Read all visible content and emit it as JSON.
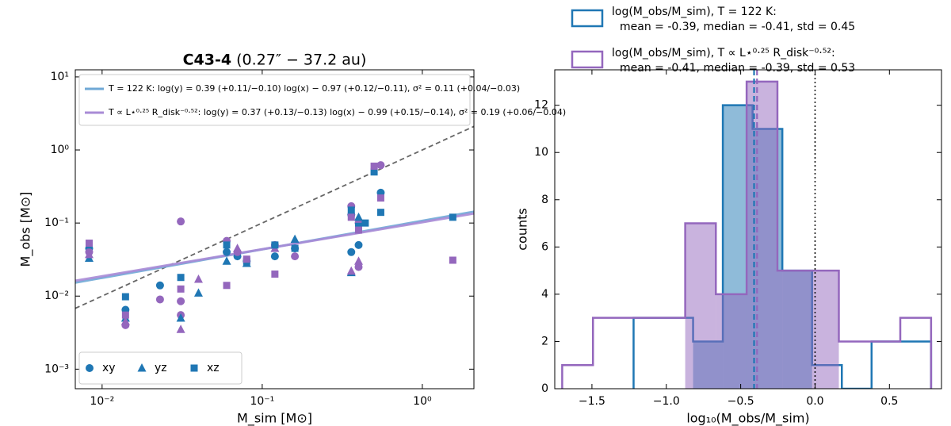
{
  "chart_data": [
    {
      "type": "scatter",
      "title": "C43-4",
      "subtitle": "(0.27″ − 37.2 au)",
      "xlabel": "M_sim [M⊙]",
      "ylabel": "M_obs [M⊙]",
      "xscale": "log",
      "yscale": "log",
      "xlim": [
        0.0068,
        2.1
      ],
      "ylim": [
        0.00054,
        12.5
      ],
      "xticks": [
        {
          "value": 0.01,
          "label": "10⁻²"
        },
        {
          "value": 0.1,
          "label": "10⁻¹"
        },
        {
          "value": 1,
          "label": "10⁰"
        }
      ],
      "yticks": [
        {
          "value": 0.001,
          "label": "10⁻³"
        },
        {
          "value": 0.01,
          "label": "10⁻²"
        },
        {
          "value": 0.1,
          "label": "10⁻¹"
        },
        {
          "value": 1,
          "label": "10⁰"
        },
        {
          "value": 10,
          "label": "10¹"
        }
      ],
      "legend": "lower left",
      "series": [
        {
          "name": "xy",
          "marker": "circle",
          "color": "#1f77b4",
          "x": [
            0.0083,
            0.014,
            0.023,
            0.06,
            0.07,
            0.08,
            0.12,
            0.16,
            0.36,
            0.36,
            0.4,
            0.55
          ],
          "values": [
            0.045,
            0.0065,
            0.014,
            0.04,
            0.035,
            0.03,
            0.035,
            0.045,
            0.13,
            0.04,
            0.05,
            0.26
          ]
        },
        {
          "marker": "circle",
          "color": "#9467bd",
          "x": [
            0.0083,
            0.014,
            0.023,
            0.031,
            0.031,
            0.031,
            0.06,
            0.07,
            0.12,
            0.16,
            0.36,
            0.4,
            0.4,
            0.55
          ],
          "values": [
            0.04,
            0.004,
            0.009,
            0.105,
            0.0085,
            0.0055,
            0.057,
            0.04,
            0.05,
            0.035,
            0.17,
            0.025,
            0.1,
            0.62
          ]
        },
        {
          "name": "yz",
          "marker": "triangle",
          "color": "#1f77b4",
          "x": [
            0.0083,
            0.014,
            0.031,
            0.04,
            0.06,
            0.08,
            0.16,
            0.36,
            0.4
          ],
          "values": [
            0.033,
            0.005,
            0.005,
            0.011,
            0.03,
            0.028,
            0.06,
            0.021,
            0.12
          ]
        },
        {
          "marker": "triangle",
          "color": "#9467bd",
          "x": [
            0.0083,
            0.014,
            0.031,
            0.04,
            0.07,
            0.12,
            0.36,
            0.4
          ],
          "values": [
            0.037,
            0.0045,
            0.0035,
            0.017,
            0.045,
            0.045,
            0.022,
            0.03
          ]
        },
        {
          "name": "xz",
          "marker": "square",
          "color": "#1f77b4",
          "x": [
            0.0083,
            0.014,
            0.031,
            0.06,
            0.08,
            0.12,
            0.16,
            0.36,
            0.4,
            0.44,
            0.5,
            0.55,
            1.55
          ],
          "values": [
            0.05,
            0.0098,
            0.018,
            0.05,
            0.03,
            0.05,
            0.045,
            0.15,
            0.09,
            0.1,
            0.5,
            0.14,
            0.12
          ]
        },
        {
          "marker": "square",
          "color": "#9467bd",
          "x": [
            0.0083,
            0.014,
            0.031,
            0.06,
            0.08,
            0.12,
            0.36,
            0.4,
            0.5,
            0.55,
            1.55
          ],
          "values": [
            0.053,
            0.0055,
            0.0125,
            0.014,
            0.032,
            0.02,
            0.12,
            0.08,
            0.6,
            0.22,
            0.031
          ]
        }
      ],
      "fits": [
        {
          "name": "T = 122 K: log(y) = 0.39 (+0.11/−0.10) log(x) − 0.97 (+0.12/−0.11), σ² = 0.11 (+0.04/−0.03)",
          "color": "#6fa8d6",
          "x": [
            0.0068,
            2.1
          ],
          "values": [
            0.0153,
            0.143
          ]
        },
        {
          "name": "T ∝ L⋆⁰·²⁵ R_disk⁻⁰·⁵²: log(y) = 0.37 (+0.13/−0.13) log(x) − 0.99 (+0.15/−0.14), σ² = 0.19 (+0.06/−0.04)",
          "color": "#a98bd6",
          "x": [
            0.0068,
            2.1
          ],
          "values": [
            0.0162,
            0.135
          ]
        }
      ],
      "reference_line": {
        "x": [
          0.0068,
          2.1
        ],
        "values": [
          0.0068,
          2.1
        ]
      }
    },
    {
      "type": "histogram",
      "xlabel": "log₁₀(M_obs/M_sim)",
      "ylabel": "counts",
      "xlim": [
        -1.75,
        0.85
      ],
      "ylim": [
        0,
        13.5
      ],
      "xticks": [
        {
          "value": -1.5,
          "label": "−1.5"
        },
        {
          "value": -1,
          "label": "−1.0"
        },
        {
          "value": -0.5,
          "label": "−0.5"
        },
        {
          "value": 0,
          "label": "0.0"
        },
        0.5
      ],
      "yticks": [
        0,
        2,
        4,
        6,
        8,
        10,
        12
      ],
      "reference_x": 0,
      "series": [
        {
          "name": "log(M_obs/M_sim), T = 122 K:",
          "stats": "mean = -0.39, median = -0.41, std = 0.45",
          "mean": -0.39,
          "median": -0.41,
          "std": 0.45,
          "color": "#1f77b4",
          "bins": [
            -1.22,
            -1.02,
            -0.82,
            -0.62,
            -0.42,
            -0.22,
            -0.02,
            0.18,
            0.38,
            0.58,
            0.78
          ],
          "values": [
            3,
            3,
            2,
            12,
            11,
            5,
            1,
            0,
            2,
            2
          ]
        },
        {
          "name": "log(M_obs/M_sim), T ∝ L⋆⁰·²⁵ R_disk⁻⁰·⁵²:",
          "stats": "mean = -0.41, median = -0.39, std = 0.53",
          "mean": -0.41,
          "median": -0.39,
          "std": 0.53,
          "color": "#9467bd",
          "bins": [
            -1.7,
            -1.493,
            -1.287,
            -1.08,
            -0.873,
            -0.667,
            -0.46,
            -0.253,
            -0.047,
            0.16,
            0.367,
            0.573,
            0.78
          ],
          "values": [
            1,
            3,
            3,
            3,
            7,
            4,
            13,
            5,
            5,
            2,
            2,
            3
          ]
        }
      ]
    }
  ]
}
